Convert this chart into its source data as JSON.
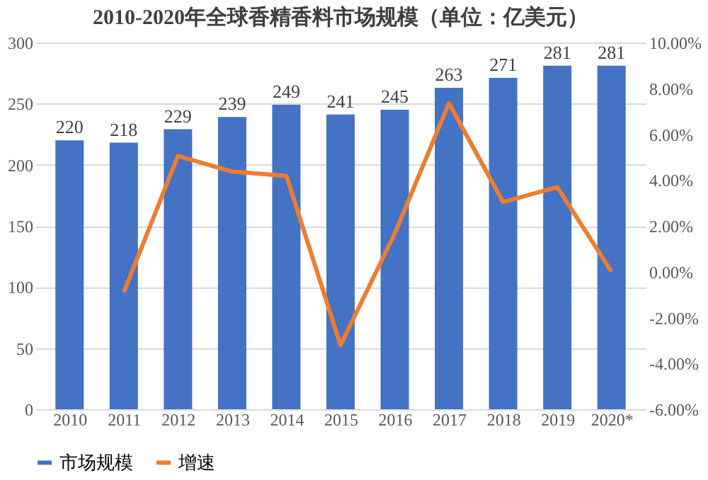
{
  "chart_data": {
    "type": "bar",
    "title": "2010-2020年全球香精香料市场规模（单位：亿美元）",
    "categories": [
      "2010",
      "2011",
      "2012",
      "2013",
      "2014",
      "2015",
      "2016",
      "2017",
      "2018",
      "2019",
      "2020*"
    ],
    "series": [
      {
        "name": "市场规模",
        "color": "#4472c4",
        "values": [
          220,
          218,
          229,
          239,
          249,
          241,
          245,
          263,
          271,
          281,
          281
        ],
        "value_labels": [
          "220",
          "218",
          "229",
          "239",
          "249",
          "241",
          "245",
          "263",
          "271",
          "281",
          "281"
        ]
      },
      {
        "name": "增速",
        "type": "line",
        "axis": "y2",
        "color": "#ed7d31",
        "values": [
          null,
          -0.9,
          5.05,
          4.37,
          4.18,
          -3.2,
          1.66,
          7.35,
          3.04,
          3.69,
          0.0
        ]
      }
    ],
    "ylim": [
      0,
      300
    ],
    "yticks": [
      0,
      50,
      100,
      150,
      200,
      250,
      300
    ],
    "y2lim": [
      -6,
      10
    ],
    "y2ticks": [
      {
        "value": -6,
        "label": "-6.00%"
      },
      {
        "value": -4,
        "label": "-4.00%"
      },
      {
        "value": -2,
        "label": "-2.00%"
      },
      {
        "value": 0,
        "label": "0.00%"
      },
      {
        "value": 2,
        "label": "2.00%"
      },
      {
        "value": 4,
        "label": "4.00%"
      },
      {
        "value": 6,
        "label": "6.00%"
      },
      {
        "value": 8,
        "label": "8.00%"
      },
      {
        "value": 10,
        "label": "10.00%"
      }
    ],
    "grid": "y",
    "legend": "bottom",
    "marker": "none",
    "line_style": "solid"
  }
}
